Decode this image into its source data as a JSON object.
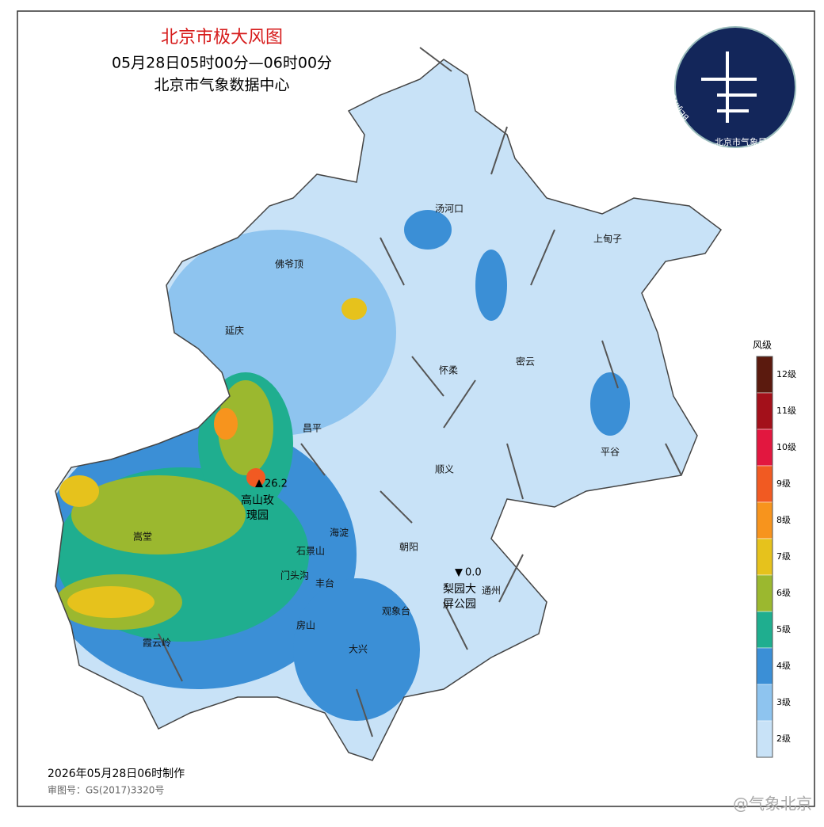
{
  "header": {
    "title": "北京市极大风图",
    "time_range": "05月28日05时00分—06时00分",
    "source": "北京市气象数据中心"
  },
  "logo": {
    "ring_text": "BEIJING METEOROLOGICAL SERVICE",
    "name": "北京市气象局"
  },
  "places": [
    "汤河口",
    "上甸子",
    "佛爷顶",
    "延庆",
    "怀柔",
    "密云",
    "昌平",
    "平谷",
    "顺义",
    "海淀",
    "嵩堂",
    "石景山",
    "朝阳",
    "门头沟",
    "丰台",
    "通州",
    "观象台",
    "霞云岭",
    "房山",
    "大兴"
  ],
  "max_station": {
    "value": "26.2",
    "name_line1": "高山玫",
    "name_line2": "瑰园"
  },
  "min_station": {
    "value": "0.0",
    "name_line1": "梨园大",
    "name_line2": "屏公园"
  },
  "legend": {
    "title": "风级",
    "items": [
      {
        "label": "12级",
        "color": "#5b1a0e"
      },
      {
        "label": "11级",
        "color": "#a3101a"
      },
      {
        "label": "10级",
        "color": "#e2173f"
      },
      {
        "label": "9级",
        "color": "#f15a22"
      },
      {
        "label": "8级",
        "color": "#f7941d"
      },
      {
        "label": "7级",
        "color": "#e6c21c"
      },
      {
        "label": "6级",
        "color": "#9bb82f"
      },
      {
        "label": "5级",
        "color": "#1fae8f"
      },
      {
        "label": "4级",
        "color": "#3b8fd6"
      },
      {
        "label": "3级",
        "color": "#8ec4ef"
      },
      {
        "label": "2级",
        "color": "#c8e2f7"
      }
    ]
  },
  "footer": {
    "made": "2026年05月28日06时制作",
    "approval": "审图号：GS(2017)3320号",
    "watermark": "@气象北京"
  }
}
